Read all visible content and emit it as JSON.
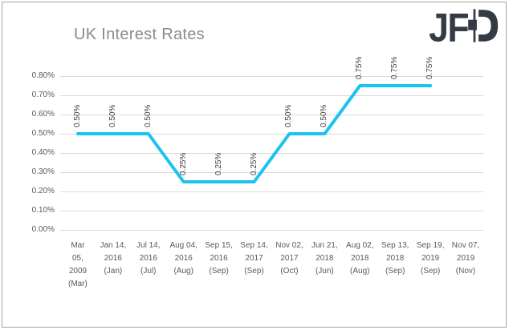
{
  "header": {
    "title": "UK Interest Rates",
    "logo_text": "JFD"
  },
  "colors": {
    "accent_line": "#1ac3f0",
    "logo": "#333b46",
    "grid": "#d9d9d9"
  },
  "chart_data": {
    "type": "line",
    "title": "UK Interest Rates",
    "legend": "none",
    "grid": true,
    "line_color": "#1ac3f0",
    "ylim": [
      0.0,
      0.8
    ],
    "y_tick_labels": [
      "0.80%",
      "0.70%",
      "0.60%",
      "0.50%",
      "0.40%",
      "0.30%",
      "0.20%",
      "0.10%",
      "0.00%"
    ],
    "categories": [
      "Mar 05, 2009 (Mar)",
      "Jan 14, 2016 (Jan)",
      "Jul 14, 2016 (Jul)",
      "Aug 04, 2016 (Aug)",
      "Sep 15, 2016 (Sep)",
      "Sep 14, 2017 (Sep)",
      "Nov 02, 2017 (Oct)",
      "Jun 21, 2018 (Jun)",
      "Aug 02, 2018 (Aug)",
      "Sep 13, 2018 (Sep)",
      "Sep 19, 2019 (Sep)",
      "Nov 07, 2019 (Nov)"
    ],
    "category_lines": [
      [
        "Mar",
        "05,",
        "2009",
        "(Mar)"
      ],
      [
        "Jan 14,",
        "2016",
        "(Jan)"
      ],
      [
        "Jul 14,",
        "2016",
        "(Jul)"
      ],
      [
        "Aug 04,",
        "2016",
        "(Aug)"
      ],
      [
        "Sep 15,",
        "2016",
        "(Sep)"
      ],
      [
        "Sep 14,",
        "2017",
        "(Sep)"
      ],
      [
        "Nov 02,",
        "2017",
        "(Oct)"
      ],
      [
        "Jun 21,",
        "2018",
        "(Jun)"
      ],
      [
        "Aug 02,",
        "2018",
        "(Aug)"
      ],
      [
        "Sep 13,",
        "2018",
        "(Sep)"
      ],
      [
        "Sep 19,",
        "2019",
        "(Sep)"
      ],
      [
        "Nov 07,",
        "2019",
        "(Nov)"
      ]
    ],
    "values": [
      0.5,
      0.5,
      0.5,
      0.25,
      0.25,
      0.25,
      0.5,
      0.5,
      0.75,
      0.75,
      0.75,
      null
    ],
    "data_labels": [
      "0.50%",
      "0.50%",
      "0.50%",
      "0.25%",
      "0.25%",
      "0.25%",
      "0.50%",
      "0.50%",
      "0.75%",
      "0.75%",
      "0.75%",
      null
    ]
  }
}
